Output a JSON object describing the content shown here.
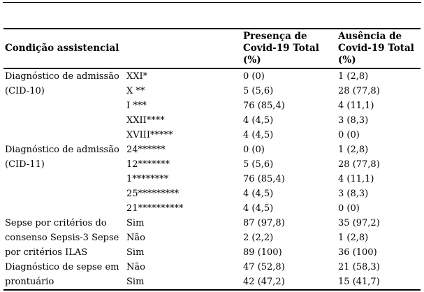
{
  "page": {
    "background": "#ffffff",
    "text_color": "#000000",
    "rule_color": "#000000"
  },
  "table": {
    "header": {
      "condicao": "Condição assistencial",
      "presenca": "Presença de\nCovid-19 Total\n(%)",
      "ausencia": "Ausência de\nCovid-19 Total\n(%)"
    },
    "groups": [
      {
        "label": "Diagnóstico de admissão\n(CID-10)",
        "rows": [
          {
            "sub": "XXI*",
            "presenca": "0 (0)",
            "ausencia": "1 (2,8)"
          },
          {
            "sub": "X **",
            "presenca": "5 (5,6)",
            "ausencia": "28 (77,8)"
          },
          {
            "sub": "I ***",
            "presenca": "76 (85,4)",
            "ausencia": "4 (11,1)"
          },
          {
            "sub": "XXII****",
            "presenca": "4 (4,5)",
            "ausencia": "3 (8,3)"
          },
          {
            "sub": "XVIII*****",
            "presenca": "4 (4,5)",
            "ausencia": "0 (0)"
          }
        ]
      },
      {
        "label": "Diagnóstico de admissão\n(CID-11)",
        "rows": [
          {
            "sub": "24******",
            "presenca": "0 (0)",
            "ausencia": "1 (2,8)"
          },
          {
            "sub": "12*******",
            "presenca": "5 (5,6)",
            "ausencia": "28 (77,8)"
          },
          {
            "sub": "1********",
            "presenca": "76 (85,4)",
            "ausencia": "4 (11,1)"
          },
          {
            "sub": "25*********",
            "presenca": "4 (4,5)",
            "ausencia": "3 (8,3)"
          },
          {
            "sub": "21**********",
            "presenca": "4 (4,5)",
            "ausencia": "0 (0)"
          }
        ]
      },
      {
        "label": "Sepse por critérios do\nconsenso Sepsis-3 Sepse\npor critérios ILAS",
        "rows": [
          {
            "sub": "Sim",
            "presenca": "87 (97,8)",
            "ausencia": "35 (97,2)"
          },
          {
            "sub": "Não",
            "presenca": "2 (2,2)",
            "ausencia": "1 (2,8)"
          },
          {
            "sub": "Sim",
            "presenca": "89 (100)",
            "ausencia": "36 (100)"
          }
        ]
      },
      {
        "label": "Diagnóstico de sepse em\nprontuário",
        "rows": [
          {
            "sub": "Não",
            "presenca": "47 (52,8)",
            "ausencia": "21 (58,3)"
          },
          {
            "sub": "Sim",
            "presenca": "42 (47,2)",
            "ausencia": "15 (41,7)"
          }
        ]
      }
    ]
  }
}
